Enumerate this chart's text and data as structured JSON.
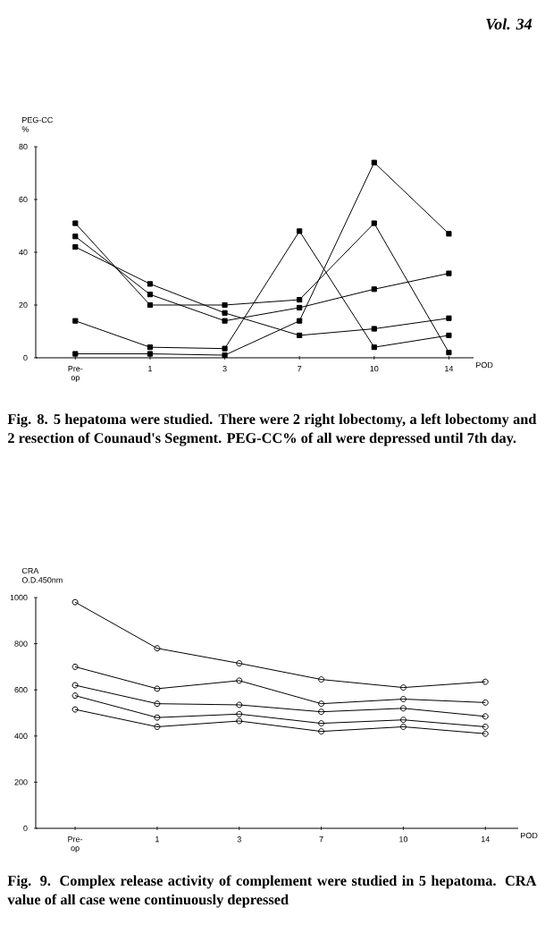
{
  "chart_data": [
    {
      "type": "line",
      "ylabel": "PEG-CC %",
      "xlabel": "POD",
      "categories": [
        "Pre-op",
        "1",
        "3",
        "7",
        "10",
        "14"
      ],
      "ylim": [
        0,
        80
      ],
      "yticks": [
        0,
        20,
        40,
        60,
        80
      ],
      "marker": "square",
      "grid": false,
      "series": [
        {
          "color": "#000000",
          "values": [
            1.5,
            1.5,
            1,
            14,
            74,
            47
          ]
        },
        {
          "color": "#000000",
          "values": [
            14,
            4,
            3.5,
            48,
            4,
            8.5
          ]
        },
        {
          "color": "#000000",
          "values": [
            51,
            20,
            20,
            22,
            51,
            2
          ]
        },
        {
          "color": "#000000",
          "values": [
            46,
            24,
            14,
            19,
            26,
            32
          ]
        },
        {
          "color": "#000000",
          "values": [
            42,
            28,
            17,
            8.5,
            11,
            15
          ]
        }
      ],
      "annotations": [
        "Vol. 34",
        "Fig. 8.  5 hepatoma were studied. There were 2 right lobectomy, a left lobectomy and 2 resection of Counaud's Segment. PEG-CC% of all were depressed until 7th day."
      ]
    },
    {
      "type": "line",
      "ylabel": "CRA O.D.450nm",
      "xlabel": "POD",
      "categories": [
        "Pre-op",
        "1",
        "3",
        "7",
        "10",
        "14"
      ],
      "ylim": [
        0,
        1000
      ],
      "yticks": [
        0,
        200,
        400,
        600,
        800,
        1000
      ],
      "marker": "circle",
      "grid": false,
      "series": [
        {
          "color": "#000000",
          "values": [
            980,
            780,
            715,
            645,
            610,
            635
          ]
        },
        {
          "color": "#000000",
          "values": [
            700,
            605,
            640,
            540,
            560,
            545
          ]
        },
        {
          "color": "#000000",
          "values": [
            620,
            540,
            535,
            505,
            520,
            485
          ]
        },
        {
          "color": "#000000",
          "values": [
            575,
            480,
            495,
            455,
            470,
            440
          ]
        },
        {
          "color": "#000000",
          "values": [
            515,
            440,
            465,
            420,
            440,
            410
          ]
        }
      ],
      "annotations": [
        "Fig. 9.  Complex release activity of complement were studied in 5 hepatoma. CRA value of all case wene continuously depressed"
      ]
    }
  ]
}
